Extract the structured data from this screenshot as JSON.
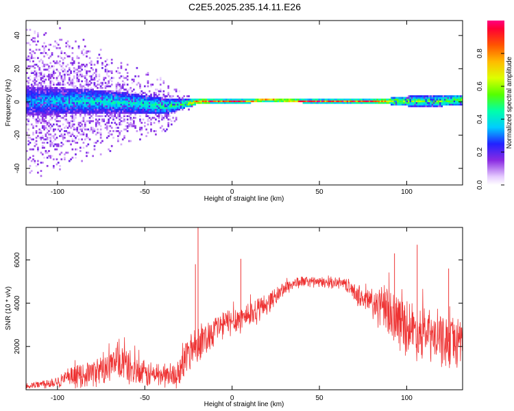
{
  "title": "C2E5.2025.235.14.11.E26",
  "chart_data": [
    {
      "type": "heatmap",
      "xlabel": "Height of straight line (km)",
      "ylabel": "Frequency (Hz)",
      "xlim": [
        -118,
        132
      ],
      "ylim": [
        -50,
        49
      ],
      "xticks": [
        -100,
        -50,
        0,
        50,
        100
      ],
      "yticks": [
        -40,
        -20,
        0,
        20,
        40
      ],
      "colorbar": {
        "label": "Normalized spectral amplitude",
        "ticks": [
          "0.0",
          "0.2",
          "0.4",
          "0.6",
          "0.8"
        ],
        "range": [
          0,
          1
        ]
      },
      "ridge": {
        "x": [
          -118,
          -100,
          -80,
          -60,
          -40,
          -30,
          -20,
          -10,
          0,
          10,
          20,
          40,
          60,
          80,
          90,
          100,
          110,
          120,
          132
        ],
        "center_hz": [
          0,
          0,
          0,
          -1,
          -3,
          -2,
          0,
          0,
          0,
          0,
          1,
          0,
          0,
          0,
          0,
          0,
          0,
          0,
          1
        ],
        "half_width_hz": [
          9,
          8,
          7,
          6,
          5,
          3,
          1.5,
          1,
          1,
          1,
          1,
          1,
          1,
          1,
          2,
          3,
          3,
          3,
          3
        ],
        "peak_amplitude": [
          0.35,
          0.4,
          0.45,
          0.45,
          0.5,
          0.55,
          0.9,
          0.95,
          0.95,
          0.9,
          0.85,
          0.95,
          0.95,
          0.95,
          0.7,
          0.6,
          0.6,
          0.6,
          0.6
        ],
        "scatter_half_width_hz": [
          50,
          45,
          35,
          25,
          18,
          10,
          0,
          0,
          0,
          0,
          0,
          0,
          0,
          0,
          0,
          0,
          0,
          0,
          0
        ]
      }
    },
    {
      "type": "line",
      "xlabel": "Height of straight line (km)",
      "ylabel": "SNR (10 * v/v)",
      "xlim": [
        -118,
        132
      ],
      "ylim": [
        0,
        7500
      ],
      "xticks": [
        -100,
        -50,
        0,
        50,
        100
      ],
      "yticks": [
        2000,
        4000,
        6000
      ],
      "color": "#ee3333",
      "series": [
        {
          "x": [
            -118,
            -110,
            -100,
            -90,
            -80,
            -70,
            -65,
            -60,
            -55,
            -50,
            -45,
            -40,
            -35,
            -30,
            -28,
            -25,
            -22,
            -19,
            -15,
            -10,
            -5,
            0,
            5,
            10,
            15,
            20,
            25,
            30,
            35,
            40,
            45,
            50,
            55,
            60,
            65,
            70,
            75,
            80,
            85,
            90,
            95,
            100,
            105,
            110,
            115,
            120,
            125,
            132
          ],
          "y": [
            150,
            250,
            400,
            600,
            800,
            1000,
            1300,
            1100,
            800,
            700,
            700,
            700,
            650,
            700,
            1200,
            1800,
            2000,
            2200,
            2400,
            2800,
            3000,
            3200,
            3300,
            3500,
            3700,
            4000,
            4300,
            4700,
            4900,
            5000,
            5000,
            4950,
            4950,
            4950,
            4900,
            4500,
            4200,
            4000,
            3800,
            3600,
            3200,
            3000,
            2700,
            2600,
            2400,
            2300,
            2200,
            2300
          ],
          "noise_amplitude": [
            150,
            200,
            300,
            500,
            600,
            800,
            900,
            800,
            700,
            600,
            600,
            600,
            500,
            600,
            900,
            1000,
            900,
            800,
            800,
            700,
            700,
            650,
            650,
            650,
            600,
            500,
            400,
            350,
            300,
            250,
            250,
            250,
            250,
            250,
            300,
            400,
            600,
            800,
            1000,
            1200,
            1300,
            1300,
            1200,
            1200,
            1200,
            1200,
            1200,
            1200
          ]
        }
      ],
      "spikes": [
        {
          "x": -19.5,
          "y": 7500
        },
        {
          "x": -21,
          "y": 5800
        },
        {
          "x": 5,
          "y": 6050
        },
        {
          "x": 106,
          "y": 6700
        },
        {
          "x": 93,
          "y": 6300
        },
        {
          "x": 124,
          "y": 5600
        }
      ]
    }
  ]
}
